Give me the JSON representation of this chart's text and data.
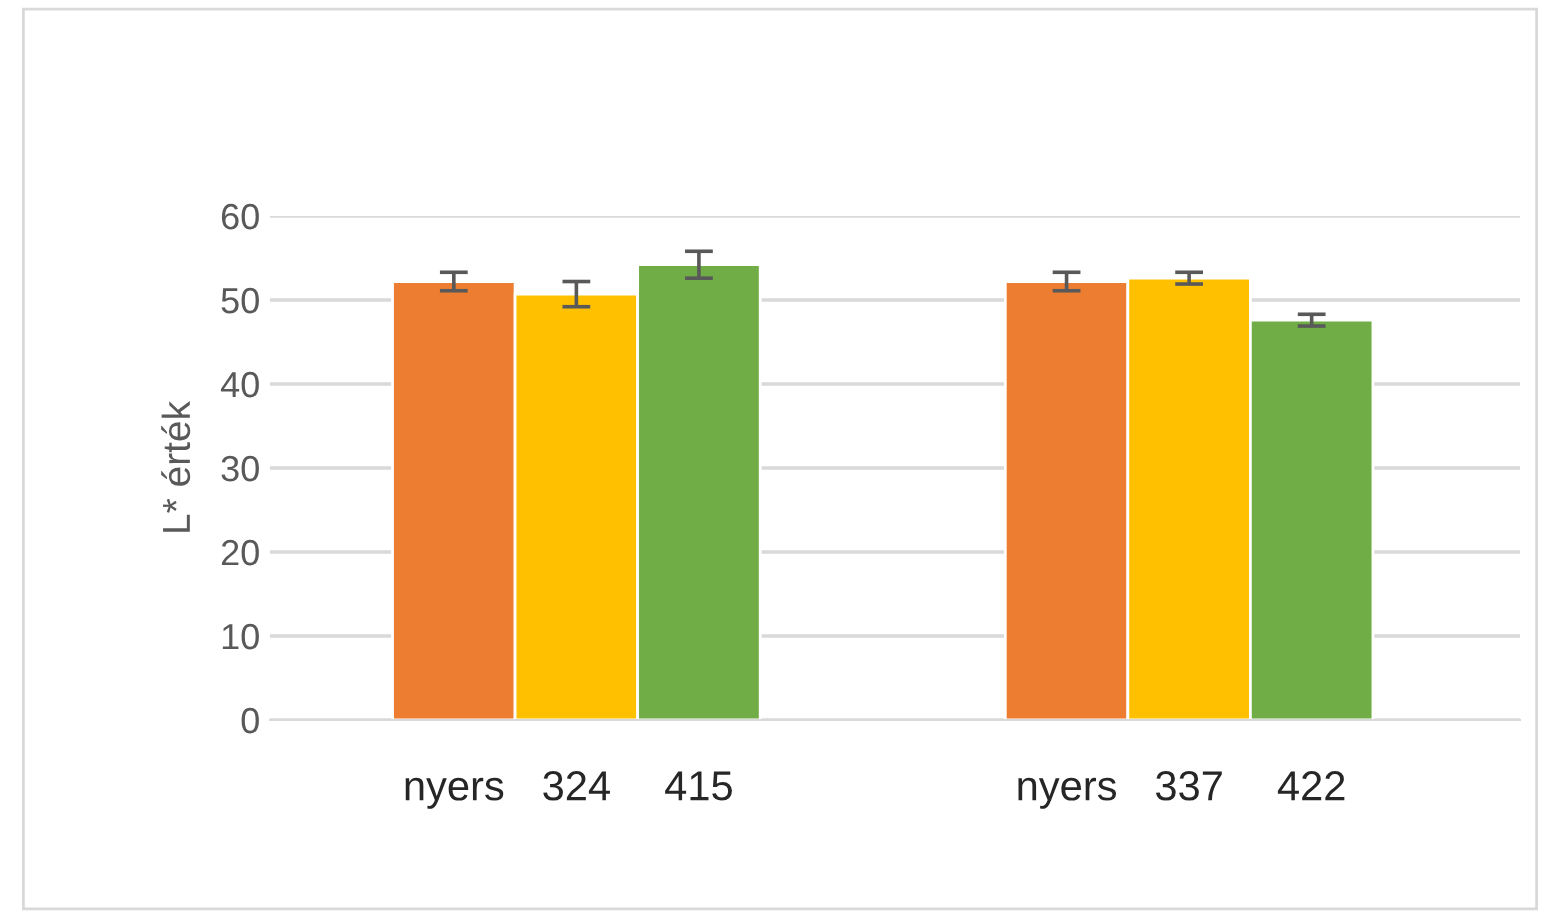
{
  "chart_data": {
    "type": "bar",
    "ylabel": "L* érték",
    "categories": [
      "nyers",
      "324",
      "415",
      null,
      null,
      "nyers",
      "337",
      "422"
    ],
    "values": [
      52.2,
      50.7,
      54.2,
      null,
      null,
      52.2,
      52.6,
      47.6
    ],
    "errors": [
      1.1,
      1.5,
      1.6,
      null,
      null,
      1.1,
      0.7,
      0.7
    ],
    "colors": [
      "#ed7d31",
      "#ffc000",
      "#70ad47",
      "#ffffff",
      "#ffffff",
      "#ed7d31",
      "#ffc000",
      "#70ad47"
    ],
    "ylim": [
      0,
      60
    ],
    "yticks": [
      0,
      10,
      20,
      30,
      40,
      50,
      60
    ],
    "grid": "y",
    "legend": false
  }
}
